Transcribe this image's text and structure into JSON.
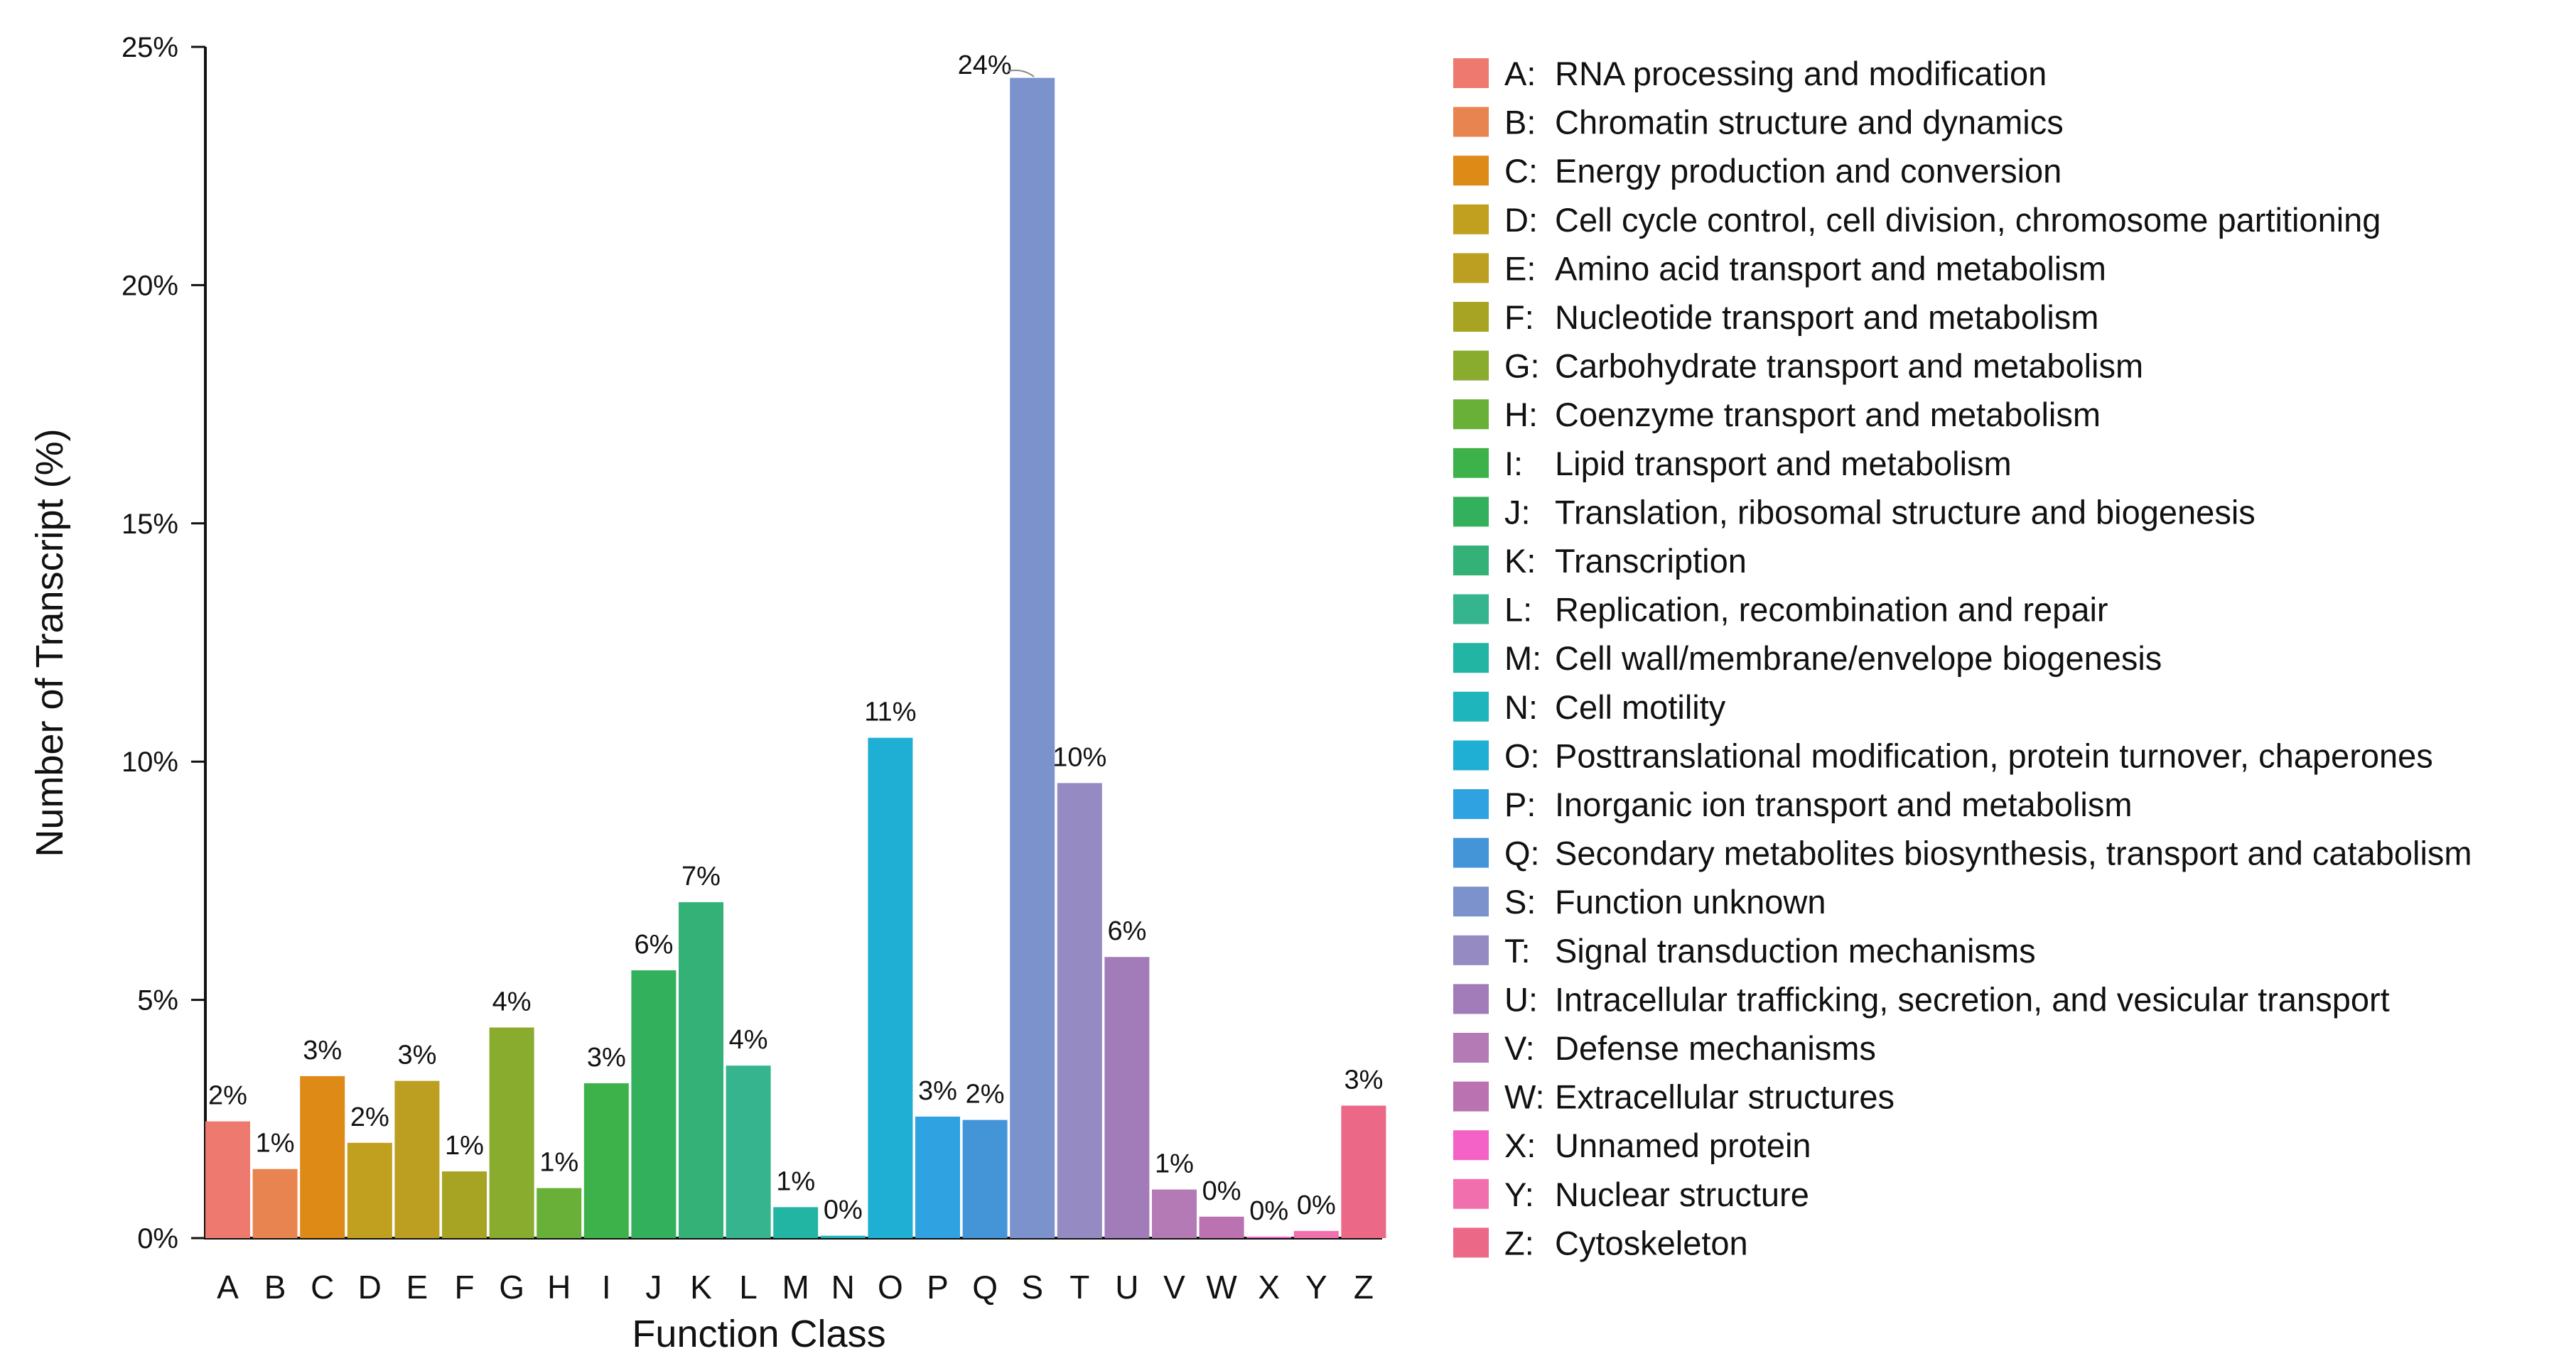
{
  "chart_data": {
    "type": "bar",
    "xlabel": "Function Class",
    "ylabel": "Number of Transcript (%)",
    "ylim": [
      0,
      25
    ],
    "yticks": [
      0,
      5,
      10,
      15,
      20,
      25
    ],
    "ytick_labels": [
      "0%",
      "5%",
      "10%",
      "15%",
      "20%",
      "25%"
    ],
    "categories": [
      "A",
      "B",
      "C",
      "D",
      "E",
      "F",
      "G",
      "H",
      "I",
      "J",
      "K",
      "L",
      "M",
      "N",
      "O",
      "P",
      "Q",
      "S",
      "T",
      "U",
      "V",
      "W",
      "X",
      "Y",
      "Z"
    ],
    "values": [
      2.45,
      1.45,
      3.4,
      2.0,
      3.3,
      1.4,
      4.42,
      1.05,
      3.25,
      5.62,
      7.05,
      3.62,
      0.65,
      0.05,
      10.5,
      2.55,
      2.48,
      24.35,
      9.55,
      5.9,
      1.02,
      0.45,
      0.03,
      0.15,
      2.78
    ],
    "data_labels": [
      "2%",
      "1%",
      "3%",
      "2%",
      "3%",
      "1%",
      "4%",
      "1%",
      "3%",
      "6%",
      "7%",
      "4%",
      "1%",
      "0%",
      "11%",
      "3%",
      "2%",
      "24%",
      "10%",
      "6%",
      "1%",
      "0%",
      "0%",
      "0%",
      "3%"
    ],
    "colors": [
      "#ee7a6f",
      "#e8844f",
      "#dd8a17",
      "#c1a01f",
      "#bc9f20",
      "#a7a424",
      "#89ab2e",
      "#68b037",
      "#3db24a",
      "#33b05c",
      "#33b177",
      "#36b48e",
      "#23b5a4",
      "#1fb5bc",
      "#20afd4",
      "#2fa3e1",
      "#4494d8",
      "#7b92cc",
      "#958bc2",
      "#a27cb8",
      "#b47ab6",
      "#bb72b1",
      "#f562c7",
      "#f26fad",
      "#eb6887"
    ],
    "legend": [
      {
        "letter": "A:",
        "text": "RNA processing and modification"
      },
      {
        "letter": "B:",
        "text": "Chromatin structure and dynamics"
      },
      {
        "letter": "C:",
        "text": "Energy production and conversion"
      },
      {
        "letter": "D:",
        "text": "Cell cycle control, cell division, chromosome partitioning"
      },
      {
        "letter": "E:",
        "text": "Amino acid transport and metabolism"
      },
      {
        "letter": "F:",
        "text": "Nucleotide transport and metabolism"
      },
      {
        "letter": "G:",
        "text": "Carbohydrate transport and metabolism"
      },
      {
        "letter": "H:",
        "text": "Coenzyme transport and metabolism"
      },
      {
        "letter": "I:",
        "text": "Lipid transport and metabolism"
      },
      {
        "letter": "J:",
        "text": "Translation, ribosomal structure and biogenesis"
      },
      {
        "letter": "K:",
        "text": "Transcription"
      },
      {
        "letter": "L:",
        "text": "Replication, recombination and repair"
      },
      {
        "letter": "M:",
        "text": "Cell wall/membrane/envelope biogenesis"
      },
      {
        "letter": "N:",
        "text": "Cell motility"
      },
      {
        "letter": "O:",
        "text": "Posttranslational modification, protein turnover, chaperones"
      },
      {
        "letter": "P:",
        "text": "Inorganic ion transport and metabolism"
      },
      {
        "letter": "Q:",
        "text": "Secondary metabolites biosynthesis, transport and catabolism"
      },
      {
        "letter": "S:",
        "text": "Function unknown"
      },
      {
        "letter": "T:",
        "text": "Signal transduction mechanisms"
      },
      {
        "letter": "U:",
        "text": "Intracellular trafficking, secretion, and vesicular transport"
      },
      {
        "letter": "V:",
        "text": "Defense mechanisms"
      },
      {
        "letter": "W:",
        "text": "Extracellular structures"
      },
      {
        "letter": "X:",
        "text": "Unnamed protein"
      },
      {
        "letter": "Y:",
        "text": "Nuclear structure"
      },
      {
        "letter": "Z:",
        "text": "Cytoskeleton"
      }
    ],
    "legend_position": "right"
  }
}
